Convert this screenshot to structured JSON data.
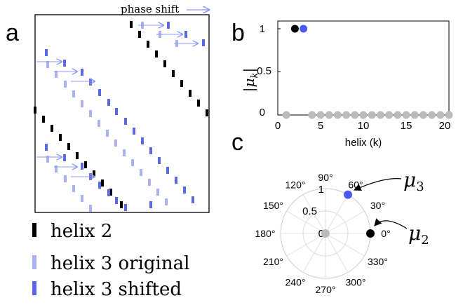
{
  "panel_a": {
    "letter": "a",
    "arrow_label": "phase shift",
    "legend": [
      {
        "label": "helix 2",
        "color": "#000000"
      },
      {
        "label": "helix 3 original",
        "color": "#a9b1f2"
      },
      {
        "label": "helix 3 shifted",
        "color": "#5a67e8"
      }
    ]
  },
  "panel_b": {
    "letter": "b",
    "xlabel": "helix (k)",
    "ylabel_main": "|μ",
    "ylabel_sub": "k",
    "ylabel_end": "|",
    "xticks": [
      "0",
      "5",
      "10",
      "15",
      "20"
    ],
    "yticks": [
      "0",
      "0.5",
      "1"
    ]
  },
  "panel_c": {
    "letter": "c",
    "angle_labels": [
      "90°",
      "60°",
      "30°",
      "0°",
      "330°",
      "300°",
      "270°",
      "240°",
      "210°",
      "180°",
      "150°",
      "120°"
    ],
    "radial_labels": [
      "0",
      "0.5",
      "1"
    ],
    "annotation_mu3": "μ",
    "annotation_mu3_sub": "3",
    "annotation_mu2": "μ",
    "annotation_mu2_sub": "2"
  },
  "chart_data": [
    {
      "type": "scatter",
      "panel": "b",
      "xlabel": "helix (k)",
      "ylabel": "|μk|",
      "xlim": [
        0,
        20
      ],
      "ylim": [
        0,
        1
      ],
      "series": [
        {
          "color": "#000000",
          "x": [
            2
          ],
          "y": [
            1
          ]
        },
        {
          "color": "#4a5af0",
          "x": [
            3
          ],
          "y": [
            1
          ]
        },
        {
          "color": "#bbbbbb",
          "x": [
            1,
            4,
            5,
            6,
            7,
            8,
            9,
            10,
            11,
            12,
            13,
            14,
            15,
            16,
            17,
            18,
            19,
            20
          ],
          "y": [
            0,
            0,
            0,
            0,
            0,
            0,
            0,
            0,
            0,
            0,
            0,
            0,
            0,
            0,
            0,
            0,
            0,
            0
          ]
        }
      ]
    },
    {
      "type": "scatter",
      "panel": "c",
      "coordinate_system": "polar",
      "rlim": [
        0,
        1
      ],
      "series": [
        {
          "label": "μ2",
          "color": "#000000",
          "r": [
            1
          ],
          "theta_deg": [
            0
          ]
        },
        {
          "label": "μ3",
          "color": "#4a5af0",
          "r": [
            1
          ],
          "theta_deg": [
            60
          ]
        },
        {
          "color": "#bbbbbb",
          "r": [
            0
          ],
          "theta_deg": [
            0
          ]
        }
      ]
    }
  ]
}
